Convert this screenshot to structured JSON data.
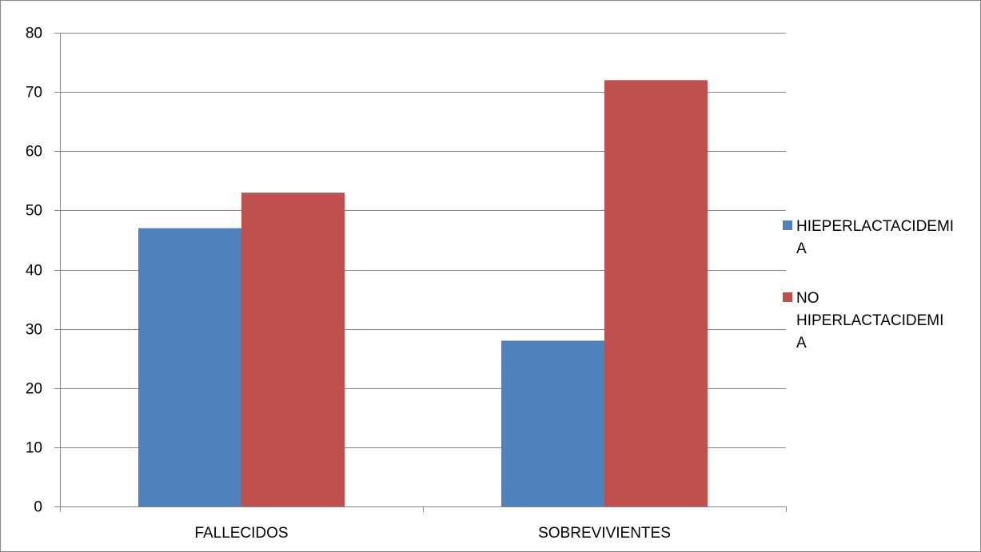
{
  "chart_data": {
    "type": "bar",
    "title": "",
    "xlabel": "",
    "ylabel": "",
    "categories": [
      "FALLECIDOS",
      "SOBREVIVIENTES"
    ],
    "series": [
      {
        "name": "HIEPERLACTACIDEMIA",
        "legend_lines": [
          "HIEPERLACTACIDEMI",
          "A"
        ],
        "color": "#4F81BD",
        "values": [
          47,
          28
        ]
      },
      {
        "name": "NO HIPERLACTACIDEMIA",
        "legend_lines": [
          "NO",
          "HIPERLACTACIDEMI",
          "A"
        ],
        "color": "#C0504D",
        "values": [
          53,
          72
        ]
      }
    ],
    "ylim": [
      0,
      80
    ],
    "yticks": [
      0,
      10,
      20,
      30,
      40,
      50,
      60,
      70,
      80
    ],
    "grid": true,
    "legend_position": "right"
  }
}
